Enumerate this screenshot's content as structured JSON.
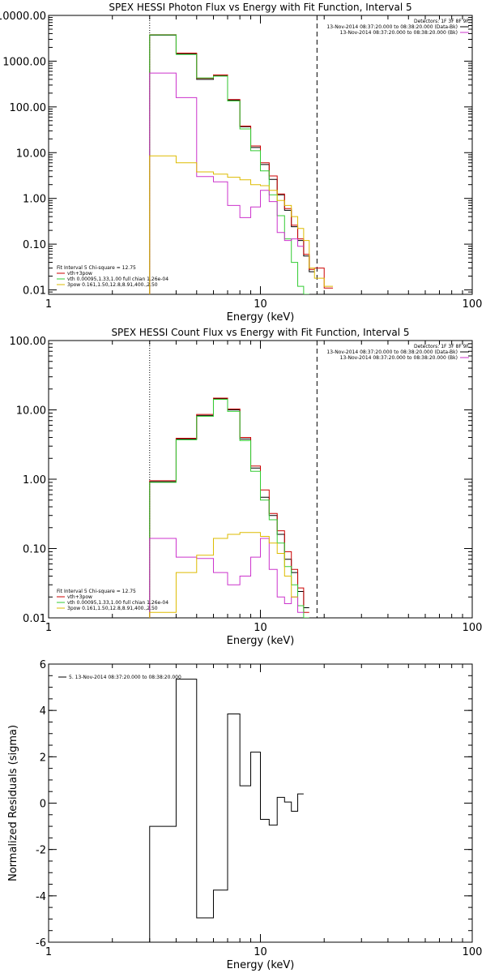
{
  "chart_data": [
    {
      "type": "line",
      "title": "SPEX HESSI Photon Flux vs Energy with Fit Function, Interval 5",
      "xlabel": "Energy (keV)",
      "ylabel": "",
      "xscale": "log",
      "yscale": "log",
      "xlim": [
        1,
        100
      ],
      "ylim": [
        0.008,
        10000
      ],
      "x_ticks": [
        {
          "v": 1,
          "label": "1"
        },
        {
          "v": 10,
          "label": "10"
        },
        {
          "v": 100,
          "label": "100"
        }
      ],
      "y_ticks": [
        {
          "v": 0.01,
          "label": "0.01"
        },
        {
          "v": 0.1,
          "label": "0.10"
        },
        {
          "v": 1,
          "label": "1.00"
        },
        {
          "v": 10,
          "label": "10.00"
        },
        {
          "v": 100,
          "label": "100.00"
        },
        {
          "v": 1000,
          "label": "1000.00"
        },
        {
          "v": 10000,
          "label": "10000.00"
        }
      ],
      "vlines": [
        {
          "x": 3,
          "style": "dotted"
        },
        {
          "x": 18.5,
          "style": "dashed"
        }
      ],
      "legend_tr": {
        "header": "Detectors: 1F 3F 8F 9F",
        "lines": [
          {
            "text": "13-Nov-2014 08:37:20.000 to 08:38:20.000 (Data-Bk)",
            "color": "#000000"
          },
          {
            "text": "13-Nov-2014 08:37:20.000 to 08:38:20.000 (Bk)",
            "color": "#cc33cc"
          }
        ]
      },
      "legend_bl": {
        "header": "Fit Interval  5    Chi-square = 12.75",
        "lines": [
          {
            "text": "vth+3pow",
            "color": "#cc0000"
          },
          {
            "text": "vth 0.00095,1.33,1.00  full chian 1.26e-04",
            "color": "#33cc33"
          },
          {
            "text": "3pow 0.161,1.50,12.8,8.91,400.,2.50",
            "color": "#ddbb00"
          }
        ]
      },
      "bin_edges": [
        3,
        4,
        5,
        6,
        7,
        8,
        9,
        10,
        11,
        12,
        13,
        14,
        15,
        16,
        17,
        18,
        20,
        22
      ],
      "series": [
        {
          "color": "#000000",
          "values": [
            3700,
            1450,
            400,
            480,
            140,
            37,
            13,
            5.5,
            2.6,
            1.2,
            0.55,
            0.24,
            0.12,
            0.055,
            0.025,
            null,
            null
          ]
        },
        {
          "color": "#cc0000",
          "values": [
            3800,
            1500,
            420,
            500,
            145,
            38,
            14,
            6.0,
            3.1,
            1.25,
            0.6,
            0.26,
            0.13,
            0.06,
            0.028,
            0.03,
            0.011
          ]
        },
        {
          "color": "#33cc33",
          "values": [
            3750,
            1400,
            430,
            470,
            135,
            33,
            11,
            4.0,
            1.2,
            0.42,
            0.13,
            0.04,
            0.012,
            0.005,
            null,
            null,
            null
          ]
        },
        {
          "color": "#cc33cc",
          "values": [
            550,
            160,
            3.0,
            2.3,
            0.7,
            0.38,
            0.65,
            1.5,
            0.85,
            0.18,
            0.12,
            0.13,
            0.09,
            null,
            null,
            null,
            null
          ]
        },
        {
          "color": "#ddbb00",
          "values": [
            8.5,
            6.0,
            3.8,
            3.4,
            2.9,
            2.55,
            2.0,
            1.9,
            1.5,
            0.9,
            0.7,
            0.4,
            0.22,
            0.12,
            0.03,
            0.018,
            0.012
          ]
        }
      ]
    },
    {
      "type": "line",
      "title": "SPEX HESSI Count Flux vs Energy with Fit Function, Interval 5",
      "xlabel": "Energy (keV)",
      "ylabel": "",
      "xscale": "log",
      "yscale": "log",
      "xlim": [
        1,
        100
      ],
      "ylim": [
        0.01,
        100
      ],
      "x_ticks": [
        {
          "v": 1,
          "label": "1"
        },
        {
          "v": 10,
          "label": "10"
        },
        {
          "v": 100,
          "label": "100"
        }
      ],
      "y_ticks": [
        {
          "v": 0.01,
          "label": "0.01"
        },
        {
          "v": 0.1,
          "label": "0.10"
        },
        {
          "v": 1,
          "label": "1.00"
        },
        {
          "v": 10,
          "label": "10.00"
        },
        {
          "v": 100,
          "label": "100.00"
        }
      ],
      "vlines": [
        {
          "x": 3,
          "style": "dotted"
        },
        {
          "x": 18.5,
          "style": "dashed"
        }
      ],
      "legend_tr": {
        "header": "Detectors: 1F 3F 8F 9F",
        "lines": [
          {
            "text": "13-Nov-2014 08:37:20.000 to 08:38:20.000 (Data-Bk)",
            "color": "#000000"
          },
          {
            "text": "13-Nov-2014 08:37:20.000 to 08:38:20.000 (Bk)",
            "color": "#cc33cc"
          }
        ]
      },
      "legend_bl": {
        "header": "Fit Interval  5    Chi-square = 12.75",
        "lines": [
          {
            "text": "vth+3pow",
            "color": "#cc0000"
          },
          {
            "text": "vth 0.00095,1.33,1.00  full chian 1.26e-04",
            "color": "#33cc33"
          },
          {
            "text": "3pow 0.161,1.50,12.8,8.91,400.,2.50",
            "color": "#ddbb00"
          }
        ]
      },
      "bin_edges": [
        3,
        4,
        5,
        6,
        7,
        8,
        9,
        10,
        11,
        12,
        13,
        14,
        15,
        16,
        17,
        18.5
      ],
      "series": [
        {
          "color": "#000000",
          "values": [
            0.92,
            3.8,
            8.3,
            14.5,
            10.0,
            3.8,
            1.45,
            0.55,
            0.3,
            0.16,
            0.07,
            0.045,
            0.024,
            0.014,
            null
          ]
        },
        {
          "color": "#cc0000",
          "values": [
            0.95,
            3.9,
            8.6,
            14.8,
            10.3,
            4.0,
            1.55,
            0.7,
            0.32,
            0.18,
            0.09,
            0.05,
            0.027,
            0.012,
            null
          ]
        },
        {
          "color": "#33cc33",
          "values": [
            0.9,
            3.7,
            8.1,
            14.2,
            9.5,
            3.6,
            1.3,
            0.5,
            0.26,
            0.12,
            0.055,
            0.03,
            0.015,
            0.008,
            null
          ]
        },
        {
          "color": "#cc33cc",
          "values": [
            0.14,
            0.075,
            0.072,
            0.045,
            0.03,
            0.04,
            0.075,
            0.14,
            0.05,
            0.02,
            0.016,
            0.02,
            0.012,
            null,
            null
          ]
        },
        {
          "color": "#ddbb00",
          "values": [
            0.012,
            0.045,
            0.08,
            0.14,
            0.16,
            0.17,
            0.17,
            0.15,
            0.12,
            0.085,
            0.04,
            0.02,
            null,
            null,
            null
          ]
        }
      ]
    },
    {
      "type": "line",
      "title": "",
      "xlabel": "Energy (keV)",
      "ylabel": "Normalized Residuals (sigma)",
      "xscale": "log",
      "yscale": "linear",
      "xlim": [
        1,
        100
      ],
      "ylim": [
        -6,
        6
      ],
      "x_ticks": [
        {
          "v": 1,
          "label": "1"
        },
        {
          "v": 10,
          "label": "10"
        },
        {
          "v": 100,
          "label": "100"
        }
      ],
      "y_ticks": [
        {
          "v": -6,
          "label": "-6"
        },
        {
          "v": -4,
          "label": "-4"
        },
        {
          "v": -2,
          "label": "-2"
        },
        {
          "v": 0,
          "label": "0"
        },
        {
          "v": 2,
          "label": "2"
        },
        {
          "v": 4,
          "label": "4"
        },
        {
          "v": 6,
          "label": "6"
        }
      ],
      "legend_tl": {
        "lines": [
          {
            "text": "5. 13-Nov-2014 08:37:20.000 to 08:38:20.000",
            "color": "#000000"
          }
        ]
      },
      "bin_edges": [
        3,
        4,
        5,
        6,
        7,
        8,
        9,
        10,
        11,
        12,
        13,
        14,
        15,
        16,
        17,
        18.5
      ],
      "series": [
        {
          "color": "#000000",
          "values": [
            -1.0,
            5.35,
            -4.95,
            -3.75,
            3.85,
            0.75,
            2.2,
            -0.7,
            -0.95,
            0.25,
            0.05,
            -0.35,
            0.4,
            null,
            null
          ]
        }
      ]
    }
  ]
}
